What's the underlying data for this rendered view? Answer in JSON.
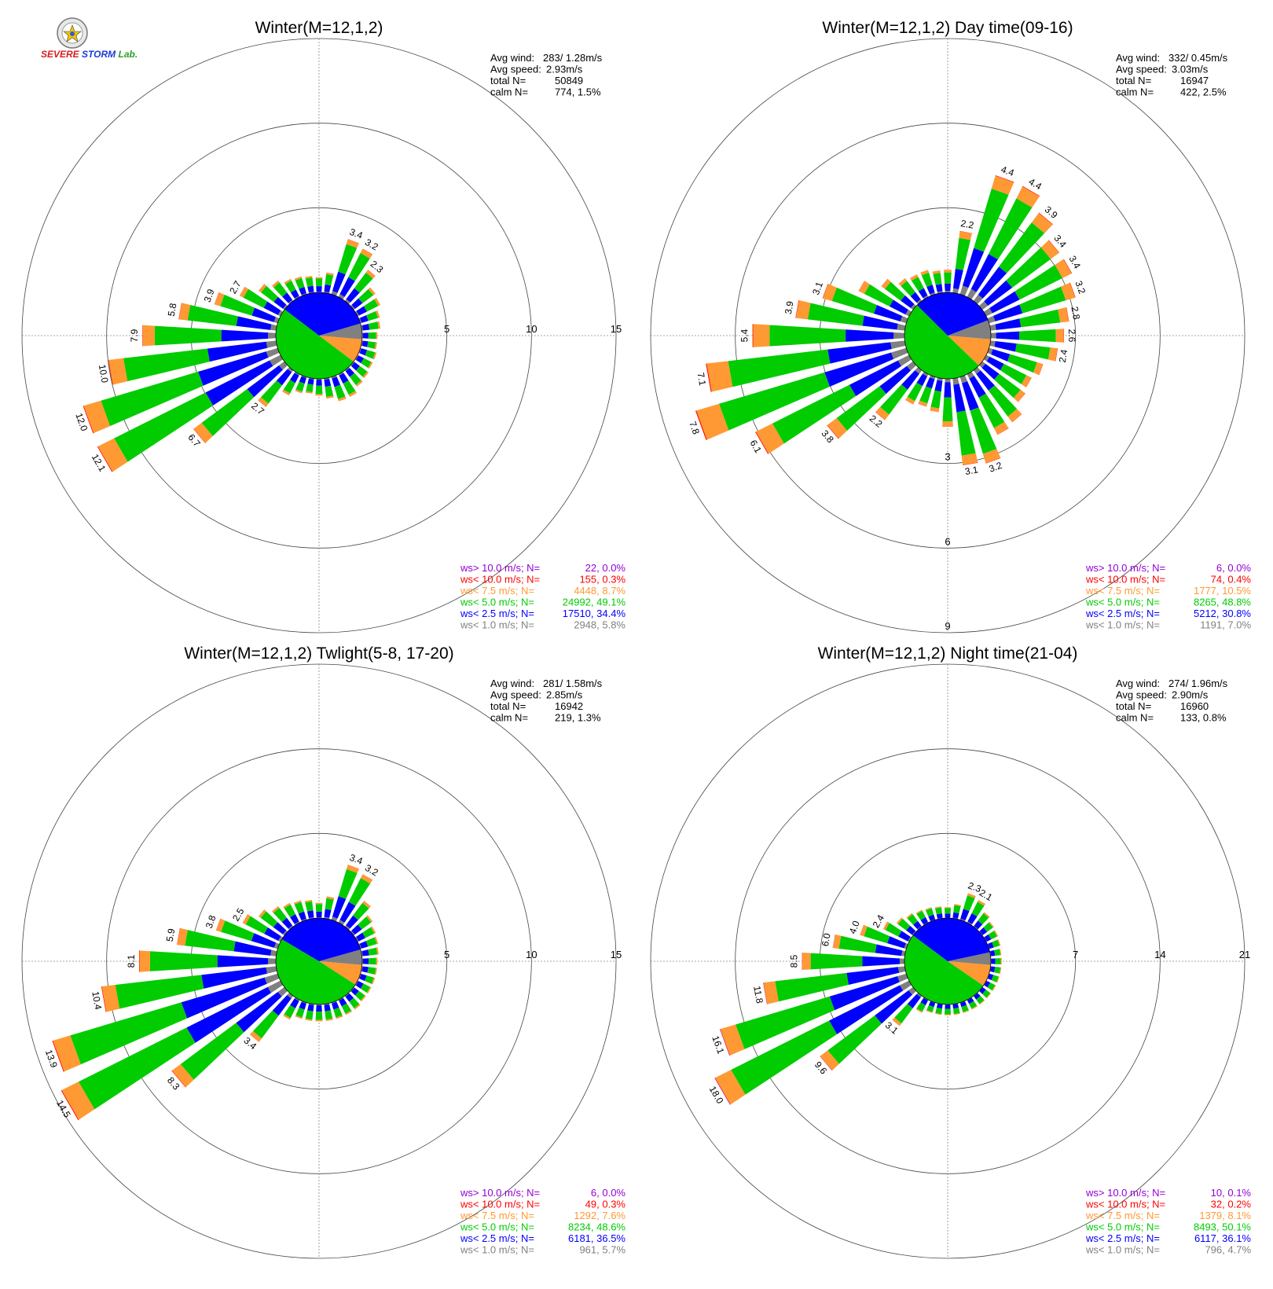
{
  "logo": {
    "name": "severe-storm-lab-logo",
    "text": "SEVERE STORM Lab."
  },
  "palette": {
    "gt10": "#9400d3",
    "lt10": "#ff0000",
    "lt75": "#ff9933",
    "lt5": "#00cc00",
    "lt25": "#0000ff",
    "lt1": "#808080",
    "grid": "#888888",
    "text": "#000000"
  },
  "chart_data": [
    {
      "type": "windrose",
      "title": "Winter(M=12,1,2)",
      "stats": [
        {
          "label": "Avg wind:",
          "value": "283/ 1.28m/s"
        },
        {
          "label": "Avg speed:",
          "value": "2.93m/s"
        },
        {
          "label": "total N=",
          "value": "50849"
        },
        {
          "label": "calm N=",
          "value": "774,   1.5%"
        }
      ],
      "rings": [
        5,
        10,
        15
      ],
      "ring_label_axis": "east",
      "legend": [
        {
          "label": "ws> 10.0 m/s; N=",
          "value": "22,  0.0%",
          "color": "#9400d3"
        },
        {
          "label": "ws< 10.0 m/s; N=",
          "value": "155,  0.3%",
          "color": "#ff0000"
        },
        {
          "label": "ws<  7.5 m/s; N=",
          "value": "4448,  8.7%",
          "color": "#ff9933"
        },
        {
          "label": "ws<  5.0 m/s; N=",
          "value": "24992, 49.1%",
          "color": "#00cc00"
        },
        {
          "label": "ws<  2.5 m/s; N=",
          "value": "17510, 34.4%",
          "color": "#0000ff"
        },
        {
          "label": "ws<  1.0 m/s; N=",
          "value": "2948,  5.8%",
          "color": "#808080"
        }
      ],
      "inner_pie": [
        {
          "class": "lt1",
          "percent": 5.8
        },
        {
          "class": "lt75",
          "percent": 8.7
        },
        {
          "class": "lt5",
          "percent": 49.1
        },
        {
          "class": "lt25",
          "percent": 34.4
        }
      ],
      "directions": [
        {
          "dir": 0,
          "total": 0.9
        },
        {
          "dir": 10,
          "total": 1.2
        },
        {
          "dir": 20,
          "total": 3.4,
          "label": "3.4"
        },
        {
          "dir": 30,
          "total": 3.2,
          "label": "3.2"
        },
        {
          "dir": 40,
          "total": 2.3,
          "label": "2.3"
        },
        {
          "dir": 50,
          "total": 1.6
        },
        {
          "dir": 60,
          "total": 1.5
        },
        {
          "dir": 70,
          "total": 1.2
        },
        {
          "dir": 80,
          "total": 1.1
        },
        {
          "dir": 90,
          "total": 0.9
        },
        {
          "dir": 100,
          "total": 0.9
        },
        {
          "dir": 110,
          "total": 1.0
        },
        {
          "dir": 120,
          "total": 1.0
        },
        {
          "dir": 130,
          "total": 1.1
        },
        {
          "dir": 140,
          "total": 1.2
        },
        {
          "dir": 150,
          "total": 1.5
        },
        {
          "dir": 160,
          "total": 1.5
        },
        {
          "dir": 170,
          "total": 1.2
        },
        {
          "dir": 180,
          "total": 1.0
        },
        {
          "dir": 190,
          "total": 0.9
        },
        {
          "dir": 200,
          "total": 1.0
        },
        {
          "dir": 210,
          "total": 1.4
        },
        {
          "dir": 220,
          "total": 2.7,
          "label": "2.7"
        },
        {
          "dir": 230,
          "total": 6.7,
          "label": "6.7"
        },
        {
          "dir": 240,
          "total": 12.1,
          "label": "12.1"
        },
        {
          "dir": 250,
          "total": 12.0,
          "label": "12.0"
        },
        {
          "dir": 260,
          "total": 10.0,
          "label": "10.0"
        },
        {
          "dir": 270,
          "total": 7.9,
          "label": "7.9"
        },
        {
          "dir": 280,
          "total": 5.8,
          "label": "5.8"
        },
        {
          "dir": 290,
          "total": 3.9,
          "label": "3.9"
        },
        {
          "dir": 300,
          "total": 2.7,
          "label": "2.7"
        },
        {
          "dir": 310,
          "total": 1.9
        },
        {
          "dir": 320,
          "total": 1.5
        },
        {
          "dir": 330,
          "total": 1.2
        },
        {
          "dir": 340,
          "total": 1.1
        },
        {
          "dir": 350,
          "total": 1.0
        }
      ]
    },
    {
      "type": "windrose",
      "title": "Winter(M=12,1,2) Day time(09-16)",
      "stats": [
        {
          "label": "Avg wind:",
          "value": "332/ 0.45m/s"
        },
        {
          "label": "Avg speed:",
          "value": "3.03m/s"
        },
        {
          "label": "total N=",
          "value": "16947"
        },
        {
          "label": "calm N=",
          "value": "422,   2.5%"
        }
      ],
      "rings": [
        3,
        6,
        9
      ],
      "ring_label_axis": "south",
      "legend": [
        {
          "label": "ws> 10.0 m/s; N=",
          "value": "6,  0.0%",
          "color": "#9400d3"
        },
        {
          "label": "ws< 10.0 m/s; N=",
          "value": "74,  0.4%",
          "color": "#ff0000"
        },
        {
          "label": "ws<  7.5 m/s; N=",
          "value": "1777, 10.5%",
          "color": "#ff9933"
        },
        {
          "label": "ws<  5.0 m/s; N=",
          "value": "8265, 48.8%",
          "color": "#00cc00"
        },
        {
          "label": "ws<  2.5 m/s; N=",
          "value": "5212, 30.8%",
          "color": "#0000ff"
        },
        {
          "label": "ws<  1.0 m/s; N=",
          "value": "1191,  7.0%",
          "color": "#808080"
        }
      ],
      "inner_pie": [
        {
          "class": "lt1",
          "percent": 7.0
        },
        {
          "class": "lt75",
          "percent": 10.5
        },
        {
          "class": "lt5",
          "percent": 48.8
        },
        {
          "class": "lt25",
          "percent": 30.8
        }
      ],
      "directions": [
        {
          "dir": 0,
          "total": 0.8
        },
        {
          "dir": 10,
          "total": 2.2,
          "label": "2.2"
        },
        {
          "dir": 20,
          "total": 4.4,
          "label": "4.4"
        },
        {
          "dir": 30,
          "total": 4.4,
          "label": "4.4"
        },
        {
          "dir": 40,
          "total": 3.9,
          "label": "3.9"
        },
        {
          "dir": 50,
          "total": 3.4,
          "label": "3.4"
        },
        {
          "dir": 60,
          "total": 3.4,
          "label": "3.4"
        },
        {
          "dir": 70,
          "total": 3.2,
          "label": "3.2"
        },
        {
          "dir": 80,
          "total": 2.8,
          "label": "2.8"
        },
        {
          "dir": 90,
          "total": 2.6,
          "label": "2.6"
        },
        {
          "dir": 100,
          "total": 2.4,
          "label": "2.4"
        },
        {
          "dir": 110,
          "total": 2.0
        },
        {
          "dir": 120,
          "total": 1.8
        },
        {
          "dir": 130,
          "total": 1.9
        },
        {
          "dir": 140,
          "total": 2.3
        },
        {
          "dir": 150,
          "total": 2.4
        },
        {
          "dir": 160,
          "total": 3.2,
          "label": "3.2"
        },
        {
          "dir": 170,
          "total": 3.1,
          "label": "3.1"
        },
        {
          "dir": 180,
          "total": 1.7
        },
        {
          "dir": 190,
          "total": 1.2
        },
        {
          "dir": 200,
          "total": 1.1
        },
        {
          "dir": 210,
          "total": 1.2
        },
        {
          "dir": 220,
          "total": 2.2,
          "label": "2.2"
        },
        {
          "dir": 230,
          "total": 3.8,
          "label": "3.8"
        },
        {
          "dir": 240,
          "total": 6.1,
          "label": "6.1"
        },
        {
          "dir": 250,
          "total": 7.8,
          "label": "7.8"
        },
        {
          "dir": 260,
          "total": 7.1,
          "label": "7.1"
        },
        {
          "dir": 270,
          "total": 5.4,
          "label": "5.4"
        },
        {
          "dir": 280,
          "total": 3.9,
          "label": "3.9"
        },
        {
          "dir": 290,
          "total": 3.1,
          "label": "3.1"
        },
        {
          "dir": 300,
          "total": 2.0
        },
        {
          "dir": 310,
          "total": 1.4
        },
        {
          "dir": 320,
          "total": 1.0
        },
        {
          "dir": 330,
          "total": 0.9
        },
        {
          "dir": 340,
          "total": 0.9
        },
        {
          "dir": 350,
          "total": 0.8
        }
      ]
    },
    {
      "type": "windrose",
      "title": "Winter(M=12,1,2) Twlight(5-8, 17-20)",
      "stats": [
        {
          "label": "Avg wind:",
          "value": "281/ 1.58m/s"
        },
        {
          "label": "Avg speed:",
          "value": "2.85m/s"
        },
        {
          "label": "total N=",
          "value": "16942"
        },
        {
          "label": "calm N=",
          "value": "219,   1.3%"
        }
      ],
      "rings": [
        5,
        10,
        15
      ],
      "ring_label_axis": "east",
      "legend": [
        {
          "label": "ws> 10.0 m/s; N=",
          "value": "6,  0.0%",
          "color": "#9400d3"
        },
        {
          "label": "ws< 10.0 m/s; N=",
          "value": "49,  0.3%",
          "color": "#ff0000"
        },
        {
          "label": "ws<  7.5 m/s; N=",
          "value": "1292,  7.6%",
          "color": "#ff9933"
        },
        {
          "label": "ws<  5.0 m/s; N=",
          "value": "8234, 48.6%",
          "color": "#00cc00"
        },
        {
          "label": "ws<  2.5 m/s; N=",
          "value": "6181, 36.5%",
          "color": "#0000ff"
        },
        {
          "label": "ws<  1.0 m/s; N=",
          "value": "961,  5.7%",
          "color": "#808080"
        }
      ],
      "inner_pie": [
        {
          "class": "lt1",
          "percent": 5.7
        },
        {
          "class": "lt75",
          "percent": 7.6
        },
        {
          "class": "lt5",
          "percent": 48.6
        },
        {
          "class": "lt25",
          "percent": 36.5
        }
      ],
      "directions": [
        {
          "dir": 0,
          "total": 0.9
        },
        {
          "dir": 10,
          "total": 1.3
        },
        {
          "dir": 20,
          "total": 3.4,
          "label": "3.4"
        },
        {
          "dir": 30,
          "total": 3.2,
          "label": "3.2"
        },
        {
          "dir": 40,
          "total": 1.9
        },
        {
          "dir": 50,
          "total": 1.4
        },
        {
          "dir": 60,
          "total": 1.2
        },
        {
          "dir": 70,
          "total": 1.1
        },
        {
          "dir": 80,
          "total": 1.0
        },
        {
          "dir": 90,
          "total": 0.9
        },
        {
          "dir": 100,
          "total": 0.9
        },
        {
          "dir": 110,
          "total": 0.9
        },
        {
          "dir": 120,
          "total": 0.9
        },
        {
          "dir": 130,
          "total": 0.9
        },
        {
          "dir": 140,
          "total": 1.0
        },
        {
          "dir": 150,
          "total": 1.0
        },
        {
          "dir": 160,
          "total": 1.0
        },
        {
          "dir": 170,
          "total": 1.0
        },
        {
          "dir": 180,
          "total": 1.0
        },
        {
          "dir": 190,
          "total": 1.0
        },
        {
          "dir": 200,
          "total": 1.0
        },
        {
          "dir": 210,
          "total": 1.3
        },
        {
          "dir": 220,
          "total": 3.4,
          "label": "3.4"
        },
        {
          "dir": 230,
          "total": 8.3,
          "label": "8.3"
        },
        {
          "dir": 240,
          "total": 14.5,
          "label": "14.5"
        },
        {
          "dir": 250,
          "total": 13.9,
          "label": "13.9"
        },
        {
          "dir": 260,
          "total": 10.4,
          "label": "10.4"
        },
        {
          "dir": 270,
          "total": 8.1,
          "label": "8.1"
        },
        {
          "dir": 280,
          "total": 5.9,
          "label": "5.9"
        },
        {
          "dir": 290,
          "total": 3.8,
          "label": "3.8"
        },
        {
          "dir": 300,
          "total": 2.5,
          "label": "2.5"
        },
        {
          "dir": 310,
          "total": 1.9
        },
        {
          "dir": 320,
          "total": 1.5
        },
        {
          "dir": 330,
          "total": 1.3
        },
        {
          "dir": 340,
          "total": 1.2
        },
        {
          "dir": 350,
          "total": 1.1
        }
      ]
    },
    {
      "type": "windrose",
      "title": "Winter(M=12,1,2) Night time(21-04)",
      "stats": [
        {
          "label": "Avg wind:",
          "value": "274/ 1.96m/s"
        },
        {
          "label": "Avg speed:",
          "value": "2.90m/s"
        },
        {
          "label": "total N=",
          "value": "16960"
        },
        {
          "label": "calm N=",
          "value": "133,   0.8%"
        }
      ],
      "rings": [
        7,
        14,
        21
      ],
      "ring_label_axis": "east",
      "legend": [
        {
          "label": "ws> 10.0 m/s; N=",
          "value": "10,  0.1%",
          "color": "#9400d3"
        },
        {
          "label": "ws< 10.0 m/s; N=",
          "value": "32,  0.2%",
          "color": "#ff0000"
        },
        {
          "label": "ws<  7.5 m/s; N=",
          "value": "1379,  8.1%",
          "color": "#ff9933"
        },
        {
          "label": "ws<  5.0 m/s; N=",
          "value": "8493, 50.1%",
          "color": "#00cc00"
        },
        {
          "label": "ws<  2.5 m/s; N=",
          "value": "6117, 36.1%",
          "color": "#0000ff"
        },
        {
          "label": "ws<  1.0 m/s; N=",
          "value": "796,  4.7%",
          "color": "#808080"
        }
      ],
      "inner_pie": [
        {
          "class": "lt1",
          "percent": 4.7
        },
        {
          "class": "lt75",
          "percent": 8.1
        },
        {
          "class": "lt5",
          "percent": 50.1
        },
        {
          "class": "lt25",
          "percent": 36.1
        }
      ],
      "directions": [
        {
          "dir": 0,
          "total": 0.9
        },
        {
          "dir": 10,
          "total": 1.2
        },
        {
          "dir": 20,
          "total": 2.3,
          "label": "2.3"
        },
        {
          "dir": 30,
          "total": 2.1,
          "label": "2.1"
        },
        {
          "dir": 40,
          "total": 1.5
        },
        {
          "dir": 50,
          "total": 1.2
        },
        {
          "dir": 60,
          "total": 1.1
        },
        {
          "dir": 70,
          "total": 1.0
        },
        {
          "dir": 80,
          "total": 0.9
        },
        {
          "dir": 90,
          "total": 0.9
        },
        {
          "dir": 100,
          "total": 0.9
        },
        {
          "dir": 110,
          "total": 0.9
        },
        {
          "dir": 120,
          "total": 0.9
        },
        {
          "dir": 130,
          "total": 0.9
        },
        {
          "dir": 140,
          "total": 0.9
        },
        {
          "dir": 150,
          "total": 0.9
        },
        {
          "dir": 160,
          "total": 0.9
        },
        {
          "dir": 170,
          "total": 0.9
        },
        {
          "dir": 180,
          "total": 0.9
        },
        {
          "dir": 190,
          "total": 0.9
        },
        {
          "dir": 200,
          "total": 0.9
        },
        {
          "dir": 210,
          "total": 1.2
        },
        {
          "dir": 220,
          "total": 3.1,
          "label": "3.1"
        },
        {
          "dir": 230,
          "total": 9.6,
          "label": "9.6"
        },
        {
          "dir": 240,
          "total": 18.0,
          "label": "18.0"
        },
        {
          "dir": 250,
          "total": 16.1,
          "label": "16.1"
        },
        {
          "dir": 260,
          "total": 11.8,
          "label": "11.8"
        },
        {
          "dir": 270,
          "total": 8.5,
          "label": "8.5"
        },
        {
          "dir": 280,
          "total": 6.0,
          "label": "6.0"
        },
        {
          "dir": 290,
          "total": 4.0,
          "label": "4.0"
        },
        {
          "dir": 300,
          "total": 2.4,
          "label": "2.4"
        },
        {
          "dir": 310,
          "total": 1.7
        },
        {
          "dir": 320,
          "total": 1.4
        },
        {
          "dir": 330,
          "total": 1.2
        },
        {
          "dir": 340,
          "total": 1.1
        },
        {
          "dir": 350,
          "total": 1.0
        }
      ]
    }
  ]
}
